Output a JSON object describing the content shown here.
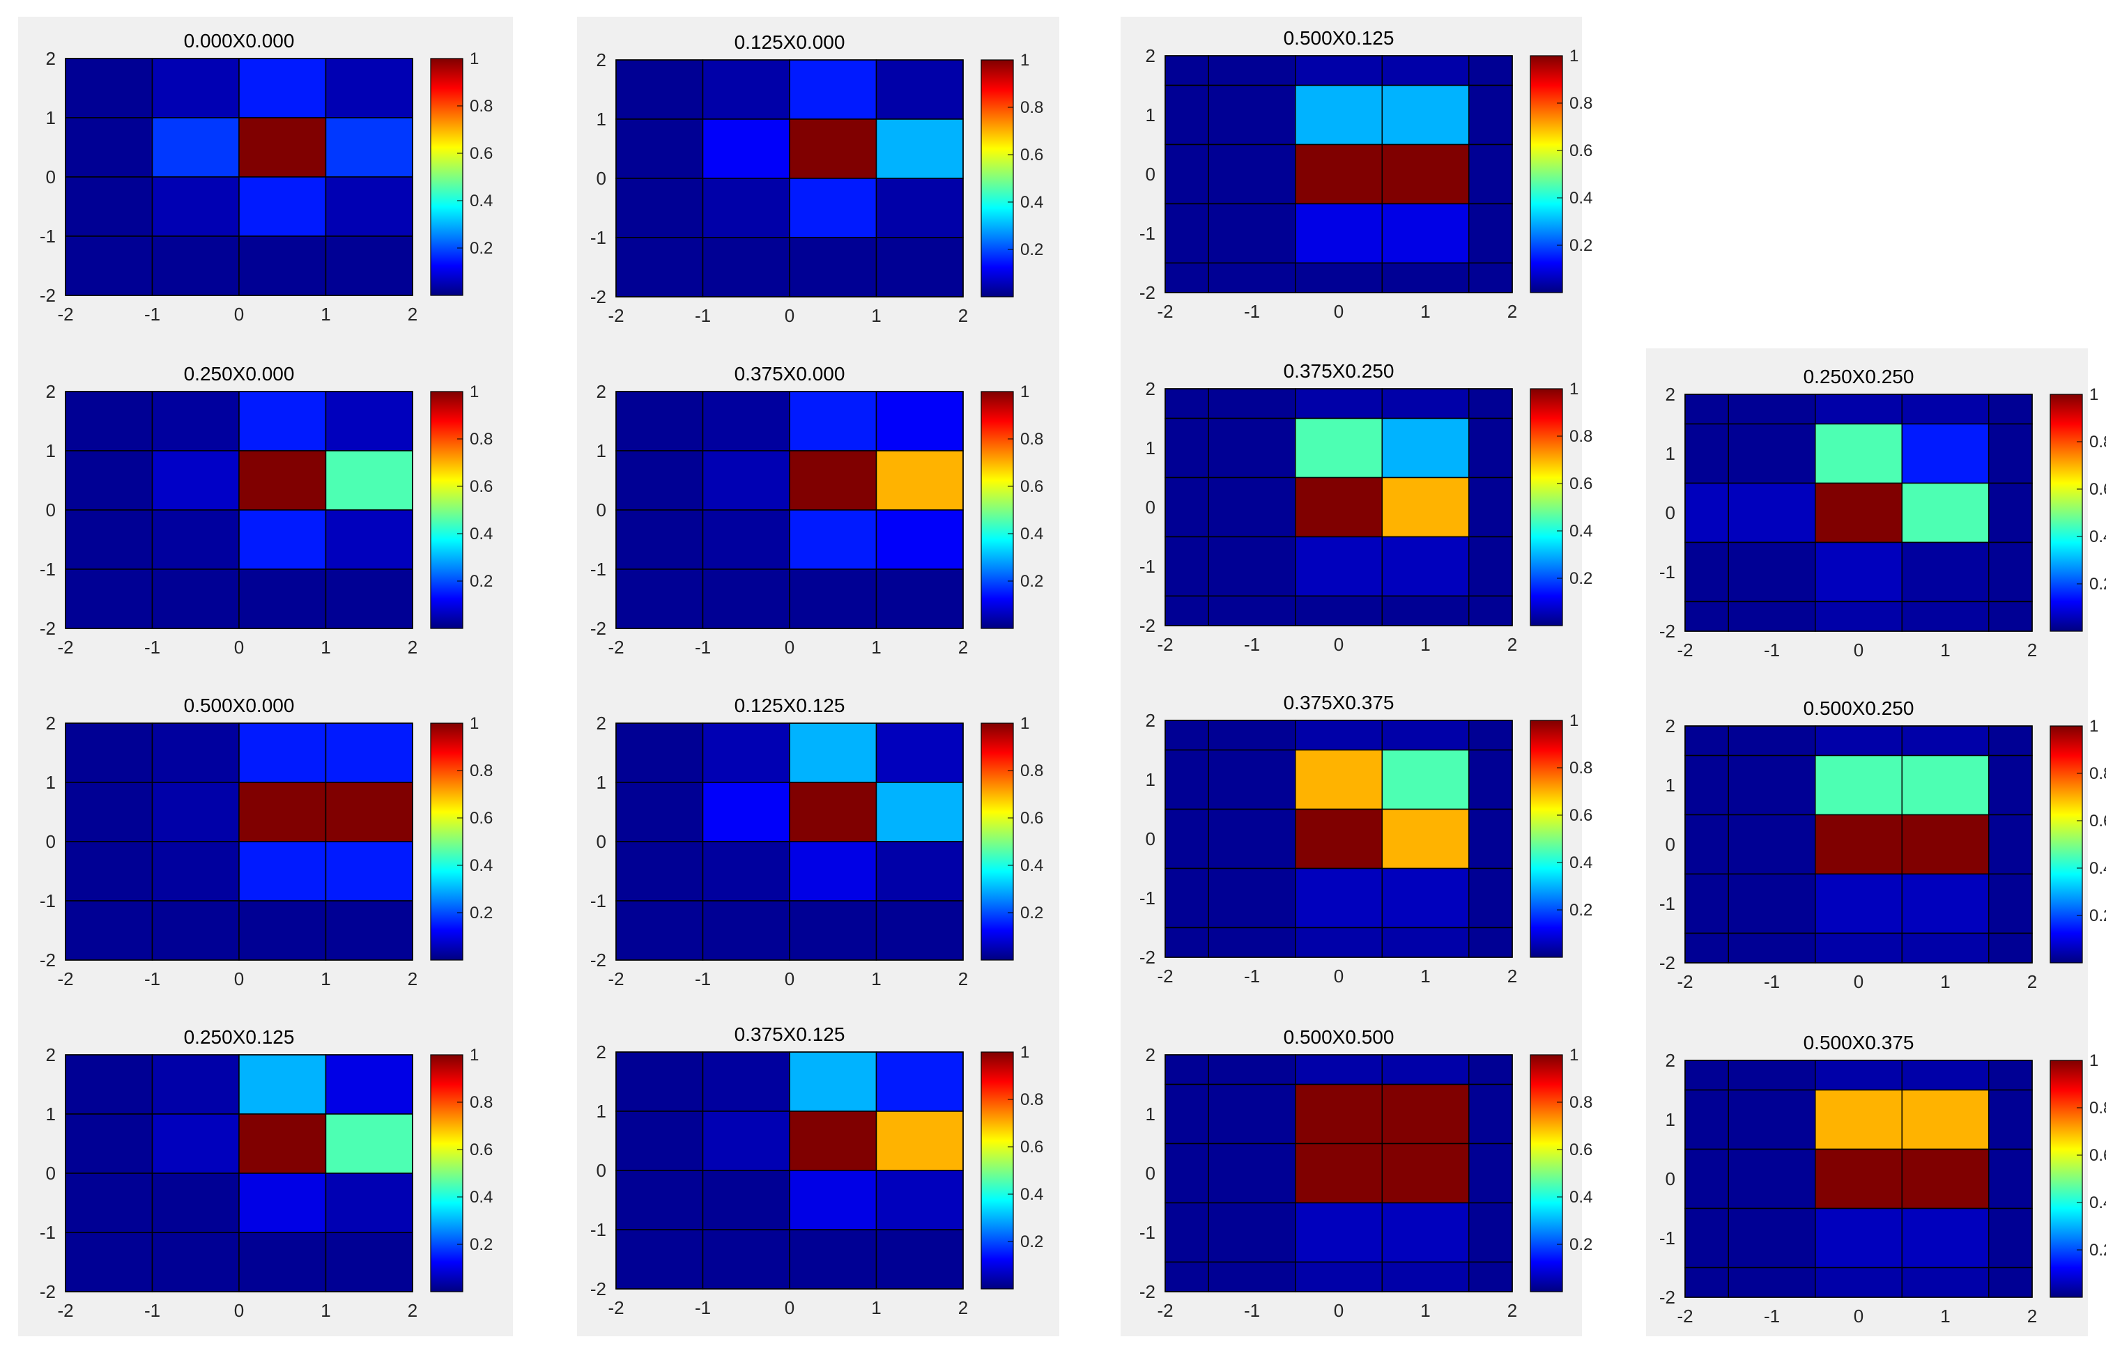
{
  "figure": {
    "tick_values": [
      -2,
      -1,
      0,
      1,
      2
    ],
    "colorbar_ticks": [
      "0.2",
      "0.4",
      "0.6",
      "0.8",
      "1"
    ],
    "colormap": "jet",
    "clim": [
      0,
      1
    ],
    "grid": true
  },
  "chart_data": [
    {
      "type": "heatmap",
      "title": "0.000X0.000",
      "xlim": [
        -2,
        2
      ],
      "ylim": [
        -2,
        2
      ],
      "grid_style": "uniform",
      "rows": [
        [
          0.02,
          0.05,
          0.15,
          0.05
        ],
        [
          0.02,
          0.18,
          1.0,
          0.18
        ],
        [
          0.02,
          0.05,
          0.15,
          0.05
        ],
        [
          0.02,
          0.02,
          0.02,
          0.02
        ]
      ]
    },
    {
      "type": "heatmap",
      "title": "0.250X0.000",
      "xlim": [
        -2,
        2
      ],
      "ylim": [
        -2,
        2
      ],
      "grid_style": "uniform",
      "rows": [
        [
          0.02,
          0.03,
          0.15,
          0.06
        ],
        [
          0.02,
          0.07,
          1.0,
          0.45
        ],
        [
          0.02,
          0.03,
          0.15,
          0.06
        ],
        [
          0.02,
          0.02,
          0.02,
          0.02
        ]
      ]
    },
    {
      "type": "heatmap",
      "title": "0.500X0.000",
      "xlim": [
        -2,
        2
      ],
      "ylim": [
        -2,
        2
      ],
      "grid_style": "uniform",
      "rows": [
        [
          0.02,
          0.03,
          0.15,
          0.15
        ],
        [
          0.02,
          0.04,
          1.0,
          1.0
        ],
        [
          0.02,
          0.03,
          0.15,
          0.15
        ],
        [
          0.02,
          0.02,
          0.02,
          0.02
        ]
      ]
    },
    {
      "type": "heatmap",
      "title": "0.250X0.125",
      "xlim": [
        -2,
        2
      ],
      "ylim": [
        -2,
        2
      ],
      "grid_style": "uniform",
      "rows": [
        [
          0.02,
          0.04,
          0.3,
          0.1
        ],
        [
          0.02,
          0.06,
          1.0,
          0.45
        ],
        [
          0.02,
          0.02,
          0.1,
          0.05
        ],
        [
          0.02,
          0.02,
          0.02,
          0.02
        ]
      ]
    },
    {
      "type": "heatmap",
      "title": "0.125X0.000",
      "xlim": [
        -2,
        2
      ],
      "ylim": [
        -2,
        2
      ],
      "grid_style": "uniform",
      "rows": [
        [
          0.02,
          0.04,
          0.15,
          0.04
        ],
        [
          0.02,
          0.12,
          1.0,
          0.3
        ],
        [
          0.02,
          0.04,
          0.15,
          0.04
        ],
        [
          0.02,
          0.02,
          0.02,
          0.02
        ]
      ]
    },
    {
      "type": "heatmap",
      "title": "0.375X0.000",
      "xlim": [
        -2,
        2
      ],
      "ylim": [
        -2,
        2
      ],
      "grid_style": "uniform",
      "rows": [
        [
          0.02,
          0.03,
          0.15,
          0.12
        ],
        [
          0.02,
          0.05,
          1.0,
          0.7
        ],
        [
          0.02,
          0.03,
          0.15,
          0.12
        ],
        [
          0.02,
          0.02,
          0.02,
          0.02
        ]
      ]
    },
    {
      "type": "heatmap",
      "title": "0.125X0.125",
      "xlim": [
        -2,
        2
      ],
      "ylim": [
        -2,
        2
      ],
      "grid_style": "uniform",
      "rows": [
        [
          0.02,
          0.05,
          0.3,
          0.06
        ],
        [
          0.02,
          0.12,
          1.0,
          0.3
        ],
        [
          0.02,
          0.03,
          0.1,
          0.04
        ],
        [
          0.02,
          0.02,
          0.02,
          0.02
        ]
      ]
    },
    {
      "type": "heatmap",
      "title": "0.375X0.125",
      "xlim": [
        -2,
        2
      ],
      "ylim": [
        -2,
        2
      ],
      "grid_style": "uniform",
      "rows": [
        [
          0.02,
          0.03,
          0.3,
          0.15
        ],
        [
          0.02,
          0.05,
          1.0,
          0.7
        ],
        [
          0.02,
          0.02,
          0.1,
          0.06
        ],
        [
          0.02,
          0.02,
          0.02,
          0.02
        ]
      ]
    },
    {
      "type": "heatmap",
      "title": "0.500X0.125",
      "xlim": [
        -2,
        2
      ],
      "ylim": [
        -2,
        2
      ],
      "grid_style": "staggered",
      "rows": [
        [
          0.02,
          0.04,
          0.04,
          0.02
        ],
        [
          0.02,
          0.3,
          0.3,
          0.02
        ],
        [
          0.02,
          1.0,
          1.0,
          0.02
        ],
        [
          0.02,
          0.1,
          0.1,
          0.02
        ],
        [
          0.02,
          0.02,
          0.02,
          0.02
        ]
      ]
    },
    {
      "type": "heatmap",
      "title": "0.375X0.250",
      "xlim": [
        -2,
        2
      ],
      "ylim": [
        -2,
        2
      ],
      "grid_style": "staggered",
      "rows": [
        [
          0.02,
          0.04,
          0.04,
          0.02
        ],
        [
          0.02,
          0.45,
          0.3,
          0.02
        ],
        [
          0.02,
          1.0,
          0.7,
          0.02
        ],
        [
          0.02,
          0.06,
          0.06,
          0.02
        ],
        [
          0.02,
          0.02,
          0.02,
          0.02
        ]
      ]
    },
    {
      "type": "heatmap",
      "title": "0.375X0.375",
      "xlim": [
        -2,
        2
      ],
      "ylim": [
        -2,
        2
      ],
      "grid_style": "staggered",
      "rows": [
        [
          0.02,
          0.04,
          0.04,
          0.02
        ],
        [
          0.02,
          0.7,
          0.45,
          0.02
        ],
        [
          0.02,
          1.0,
          0.7,
          0.02
        ],
        [
          0.02,
          0.06,
          0.06,
          0.02
        ],
        [
          0.02,
          0.04,
          0.04,
          0.02
        ]
      ]
    },
    {
      "type": "heatmap",
      "title": "0.500X0.500",
      "xlim": [
        -2,
        2
      ],
      "ylim": [
        -2,
        2
      ],
      "grid_style": "staggered",
      "rows": [
        [
          0.02,
          0.04,
          0.04,
          0.02
        ],
        [
          0.02,
          1.0,
          1.0,
          0.02
        ],
        [
          0.02,
          1.0,
          1.0,
          0.02
        ],
        [
          0.02,
          0.06,
          0.06,
          0.02
        ],
        [
          0.02,
          0.04,
          0.04,
          0.02
        ]
      ]
    },
    {
      "type": "heatmap",
      "title": "0.250X0.250",
      "xlim": [
        -2,
        2
      ],
      "ylim": [
        -2,
        2
      ],
      "grid_style": "staggered",
      "rows": [
        [
          0.02,
          0.04,
          0.04,
          0.02
        ],
        [
          0.02,
          0.45,
          0.15,
          0.02
        ],
        [
          0.06,
          1.0,
          0.45,
          0.02
        ],
        [
          0.02,
          0.06,
          0.03,
          0.02
        ],
        [
          0.02,
          0.04,
          0.03,
          0.02
        ]
      ]
    },
    {
      "type": "heatmap",
      "title": "0.500X0.250",
      "xlim": [
        -2,
        2
      ],
      "ylim": [
        -2,
        2
      ],
      "grid_style": "staggered",
      "rows": [
        [
          0.02,
          0.04,
          0.04,
          0.02
        ],
        [
          0.02,
          0.45,
          0.45,
          0.02
        ],
        [
          0.02,
          1.0,
          1.0,
          0.02
        ],
        [
          0.02,
          0.06,
          0.06,
          0.02
        ],
        [
          0.02,
          0.04,
          0.04,
          0.02
        ]
      ]
    },
    {
      "type": "heatmap",
      "title": "0.500X0.375",
      "xlim": [
        -2,
        2
      ],
      "ylim": [
        -2,
        2
      ],
      "grid_style": "staggered",
      "rows": [
        [
          0.02,
          0.04,
          0.04,
          0.02
        ],
        [
          0.02,
          0.7,
          0.7,
          0.02
        ],
        [
          0.02,
          1.0,
          1.0,
          0.02
        ],
        [
          0.02,
          0.06,
          0.06,
          0.02
        ],
        [
          0.02,
          0.04,
          0.04,
          0.02
        ]
      ]
    }
  ]
}
